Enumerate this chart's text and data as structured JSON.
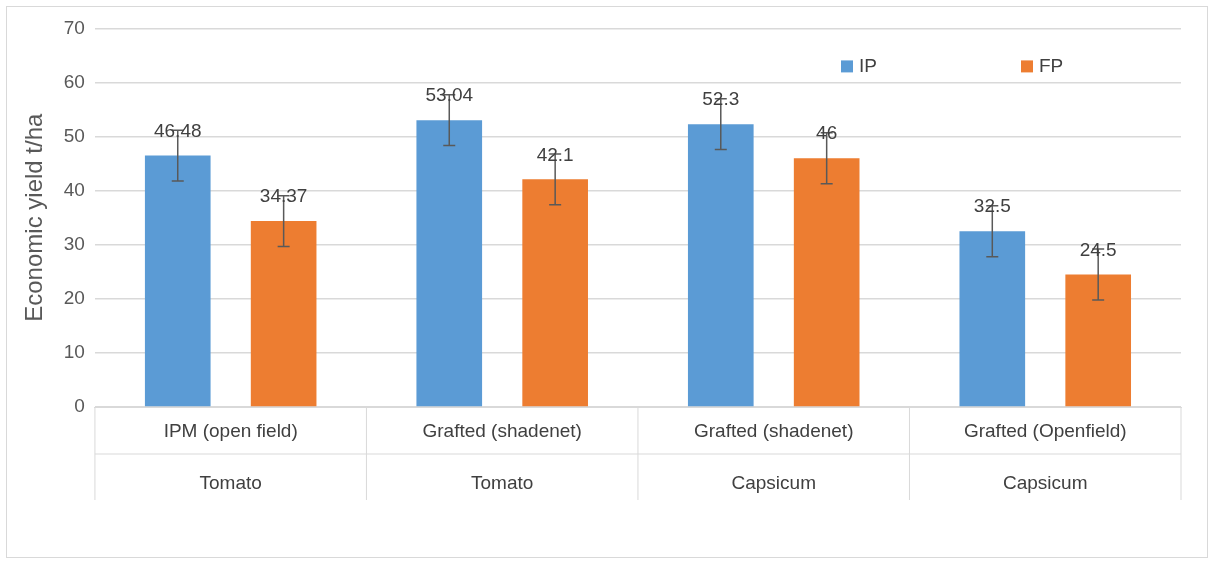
{
  "chart_data": {
    "type": "bar",
    "ylabel": "Economic yield t/ha",
    "categories": [
      "IPM (open field)\nTomato",
      "Grafted (shadenet)\nTomato",
      "Grafted (shadenet)\nCapsicum",
      "Grafted (Openfield)\nCapsicum"
    ],
    "series": [
      {
        "name": "IP",
        "color": "#5b9bd5",
        "values": [
          46.48,
          53.04,
          52.3,
          32.5
        ],
        "errors": [
          4.7,
          4.7,
          4.7,
          4.7
        ]
      },
      {
        "name": "FP",
        "color": "#ed7d31",
        "values": [
          34.37,
          42.1,
          46,
          24.5
        ],
        "errors": [
          4.7,
          4.7,
          4.7,
          4.7
        ]
      }
    ],
    "ylim": [
      0,
      70
    ],
    "yticks": [
      0,
      10,
      20,
      30,
      40,
      50,
      60,
      70
    ],
    "grid": "y",
    "legend": "top right",
    "data_labels": true
  }
}
